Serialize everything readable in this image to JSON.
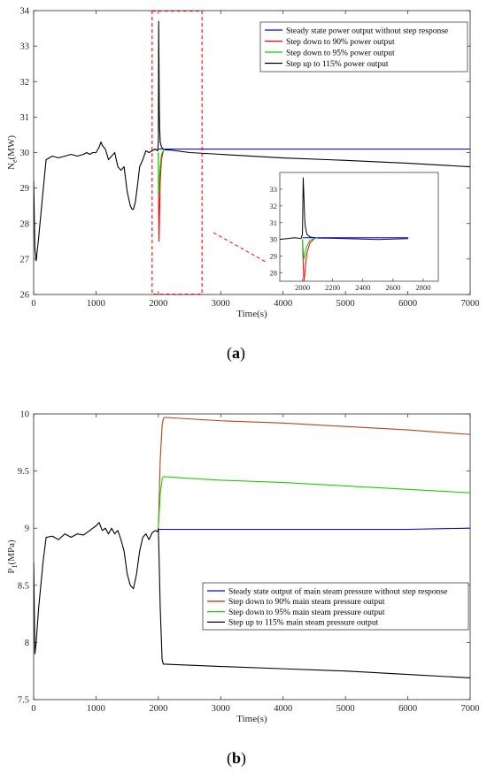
{
  "panels": {
    "a": {
      "label": "a"
    },
    "b": {
      "label": "b"
    }
  },
  "chart_data": [
    {
      "type": "line",
      "xlabel": "Time(s)",
      "ylabel_main": "N",
      "ylabel_sub": "e",
      "ylabel_unit": "(MW)",
      "xlim": [
        0,
        7000
      ],
      "ylim": [
        26,
        34
      ],
      "xticks": [
        "0",
        "1000",
        "2000",
        "3000",
        "4000",
        "5000",
        "6000",
        "7000"
      ],
      "yticks": [
        "26",
        "27",
        "28",
        "29",
        "30",
        "31",
        "32",
        "33",
        "34"
      ],
      "legend_position": "top-right",
      "highlight_box": {
        "x": [
          1900,
          2700
        ],
        "y": [
          26,
          34
        ],
        "color": "#ff0000"
      },
      "series": [
        {
          "name": "Steady state power output without step response",
          "color": "#0000ff",
          "x": [
            2000,
            2500,
            3000,
            4000,
            5000,
            6000,
            7000
          ],
          "y": [
            30.1,
            30.1,
            30.1,
            30.1,
            30.1,
            30.1,
            30.1
          ]
        },
        {
          "name": "Step down to 90% power output",
          "color": "#ff0000",
          "x": [
            2000,
            2005,
            2010,
            2020,
            2030,
            2050,
            2080,
            2100
          ],
          "y": [
            30.0,
            28.5,
            27.5,
            28.4,
            29.2,
            29.8,
            30.05,
            30.1
          ]
        },
        {
          "name": "Step down to 95% power output",
          "color": "#00cc00",
          "x": [
            2000,
            2005,
            2010,
            2020,
            2030,
            2050,
            2080,
            2100
          ],
          "y": [
            30.0,
            29.3,
            28.8,
            29.3,
            29.6,
            29.95,
            30.05,
            30.1
          ]
        },
        {
          "name": "Step up to 115% power output",
          "color": "#000000",
          "x": [
            0,
            20,
            40,
            80,
            150,
            200,
            250,
            300,
            400,
            500,
            600,
            700,
            800,
            850,
            900,
            950,
            1000,
            1050,
            1080,
            1100,
            1150,
            1200,
            1250,
            1300,
            1350,
            1400,
            1450,
            1500,
            1550,
            1580,
            1600,
            1630,
            1660,
            1700,
            1750,
            1800,
            1850,
            1900,
            1950,
            1990,
            2000,
            2005,
            2010,
            2015,
            2020,
            2030,
            2050,
            2080,
            2100,
            2200,
            2500,
            3000,
            4000,
            5000,
            6000,
            7000
          ],
          "y": [
            29.2,
            27.3,
            26.95,
            27.6,
            28.9,
            29.8,
            29.85,
            29.9,
            29.85,
            29.9,
            29.95,
            29.9,
            29.95,
            30.0,
            29.95,
            30.0,
            30.0,
            30.15,
            30.3,
            30.2,
            30.1,
            29.8,
            29.9,
            30.0,
            29.6,
            29.5,
            29.6,
            28.9,
            28.5,
            28.4,
            28.4,
            28.6,
            29.0,
            29.6,
            29.8,
            30.05,
            30.0,
            30.05,
            30.1,
            30.05,
            30.3,
            33.7,
            32.5,
            31.2,
            30.7,
            30.3,
            30.15,
            30.1,
            30.08,
            30.07,
            30.0,
            29.95,
            29.85,
            29.78,
            29.7,
            29.6
          ]
        }
      ],
      "inset": {
        "xlim": [
          1850,
          2900
        ],
        "ylim": [
          27.5,
          34
        ],
        "xticks": [
          "2000",
          "2200",
          "2400",
          "2600",
          "2800"
        ],
        "yticks": [
          "28",
          "29",
          "30",
          "31",
          "32",
          "33"
        ]
      }
    },
    {
      "type": "line",
      "xlabel": "Time(s)",
      "ylabel_main": "P",
      "ylabel_sub": "1",
      "ylabel_unit": "(MPa)",
      "xlim": [
        0,
        7000
      ],
      "ylim": [
        7.5,
        10
      ],
      "xticks": [
        "0",
        "1000",
        "2000",
        "3000",
        "4000",
        "5000",
        "6000",
        "7000"
      ],
      "yticks": [
        "7.5",
        "8",
        "8.5",
        "9",
        "9.5",
        "10"
      ],
      "legend_position": "middle-right",
      "series": [
        {
          "name": "Steady state output of main steam pressure without step response",
          "color": "#0000ff",
          "x": [
            2000,
            2500,
            3000,
            4000,
            5000,
            6000,
            7000
          ],
          "y": [
            8.99,
            8.99,
            8.99,
            8.99,
            8.99,
            8.99,
            9.0
          ]
        },
        {
          "name": "Step down to 90% main steam pressure output",
          "color": "#b5451b",
          "x": [
            2000,
            2030,
            2060,
            2080,
            2100,
            3000,
            4000,
            5000,
            6000,
            7000
          ],
          "y": [
            9.0,
            9.6,
            9.9,
            9.96,
            9.97,
            9.94,
            9.92,
            9.89,
            9.86,
            9.82
          ]
        },
        {
          "name": "Step down to 95% main steam pressure output",
          "color": "#22cc00",
          "x": [
            2000,
            2030,
            2060,
            2080,
            2100,
            3000,
            4000,
            5000,
            6000,
            7000
          ],
          "y": [
            9.0,
            9.3,
            9.43,
            9.45,
            9.45,
            9.42,
            9.4,
            9.37,
            9.34,
            9.31
          ]
        },
        {
          "name": "Step up to 115% main steam pressure output",
          "color": "#000000",
          "x": [
            0,
            20,
            40,
            80,
            150,
            200,
            300,
            400,
            500,
            600,
            700,
            800,
            900,
            950,
            1000,
            1050,
            1100,
            1150,
            1200,
            1250,
            1300,
            1350,
            1400,
            1450,
            1500,
            1550,
            1600,
            1650,
            1700,
            1750,
            1800,
            1850,
            1900,
            1950,
            1990,
            2000,
            2030,
            2060,
            2080,
            2100,
            3000,
            4000,
            5000,
            6000,
            7000
          ],
          "y": [
            8.7,
            7.9,
            8.0,
            8.3,
            8.7,
            8.92,
            8.93,
            8.9,
            8.95,
            8.92,
            8.95,
            8.94,
            8.98,
            9.0,
            9.02,
            9.05,
            8.98,
            9.0,
            8.95,
            9.0,
            8.95,
            8.98,
            8.9,
            8.8,
            8.6,
            8.5,
            8.47,
            8.6,
            8.8,
            8.92,
            8.95,
            8.9,
            8.96,
            8.98,
            8.97,
            9.0,
            8.3,
            7.85,
            7.81,
            7.81,
            7.79,
            7.77,
            7.75,
            7.72,
            7.69
          ]
        }
      ]
    }
  ]
}
